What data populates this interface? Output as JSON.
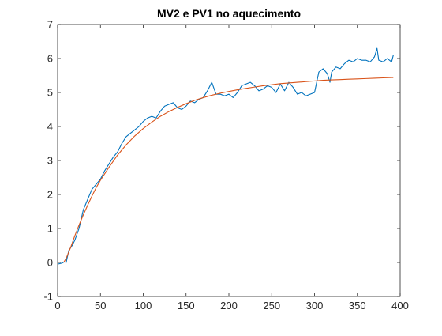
{
  "chart_data": {
    "type": "line",
    "title": "MV2 e PV1 no aquecimento",
    "xlabel": "",
    "ylabel": "",
    "xlim": [
      0,
      400
    ],
    "ylim": [
      -1,
      7
    ],
    "xticks": [
      0,
      50,
      100,
      150,
      200,
      250,
      300,
      350,
      400
    ],
    "yticks": [
      -1,
      0,
      1,
      2,
      3,
      4,
      5,
      6,
      7
    ],
    "xtick_labels": [
      "0",
      "50",
      "100",
      "150",
      "200",
      "250",
      "300",
      "350",
      "400"
    ],
    "ytick_labels": [
      "-1",
      "0",
      "1",
      "2",
      "3",
      "4",
      "5",
      "6",
      "7"
    ],
    "grid": false,
    "legend": "none",
    "series": [
      {
        "color": "#0072BD",
        "x": [
          0,
          5,
          8,
          10,
          13,
          17,
          20,
          25,
          30,
          35,
          40,
          45,
          50,
          55,
          60,
          65,
          70,
          75,
          80,
          85,
          90,
          95,
          100,
          105,
          110,
          115,
          120,
          125,
          130,
          135,
          140,
          145,
          150,
          155,
          160,
          165,
          170,
          175,
          180,
          185,
          190,
          195,
          200,
          205,
          210,
          215,
          220,
          225,
          230,
          235,
          240,
          245,
          250,
          255,
          260,
          265,
          270,
          275,
          280,
          285,
          290,
          295,
          300,
          305,
          310,
          315,
          318,
          320,
          325,
          330,
          335,
          340,
          345,
          350,
          355,
          360,
          365,
          370,
          373,
          375,
          380,
          385,
          390,
          392
        ],
        "y": [
          -0.05,
          -0.02,
          0.02,
          0.0,
          0.35,
          0.5,
          0.65,
          1.0,
          1.55,
          1.85,
          2.15,
          2.3,
          2.45,
          2.7,
          2.9,
          3.1,
          3.25,
          3.5,
          3.7,
          3.8,
          3.9,
          4.0,
          4.15,
          4.25,
          4.3,
          4.25,
          4.45,
          4.6,
          4.65,
          4.7,
          4.55,
          4.5,
          4.6,
          4.75,
          4.7,
          4.8,
          4.85,
          5.05,
          5.3,
          4.95,
          4.95,
          4.9,
          4.95,
          4.85,
          5.0,
          5.2,
          5.25,
          5.3,
          5.2,
          5.05,
          5.1,
          5.2,
          5.15,
          5.0,
          5.25,
          5.05,
          5.3,
          5.15,
          4.95,
          5.0,
          4.9,
          4.95,
          5.0,
          5.6,
          5.7,
          5.55,
          5.3,
          5.6,
          5.75,
          5.7,
          5.85,
          5.95,
          5.9,
          6.0,
          5.95,
          5.95,
          5.9,
          6.05,
          6.3,
          5.95,
          5.9,
          6.0,
          5.9,
          6.1
        ]
      },
      {
        "color": "#D95319",
        "x": [
          7,
          10,
          15,
          20,
          25,
          30,
          35,
          40,
          45,
          50,
          60,
          70,
          80,
          90,
          100,
          110,
          120,
          130,
          140,
          150,
          160,
          170,
          180,
          190,
          200,
          210,
          220,
          230,
          240,
          250,
          260,
          270,
          280,
          290,
          300,
          310,
          320,
          330,
          340,
          350,
          360,
          370,
          380,
          390,
          392
        ],
        "y": [
          0.0,
          0.12,
          0.43,
          0.78,
          1.1,
          1.4,
          1.68,
          1.95,
          2.2,
          2.42,
          2.8,
          3.16,
          3.46,
          3.72,
          3.94,
          4.13,
          4.3,
          4.44,
          4.56,
          4.67,
          4.77,
          4.85,
          4.92,
          4.98,
          5.03,
          5.08,
          5.12,
          5.16,
          5.2,
          5.23,
          5.26,
          5.28,
          5.3,
          5.32,
          5.34,
          5.36,
          5.37,
          5.38,
          5.39,
          5.4,
          5.41,
          5.42,
          5.43,
          5.44,
          5.44
        ]
      }
    ]
  }
}
